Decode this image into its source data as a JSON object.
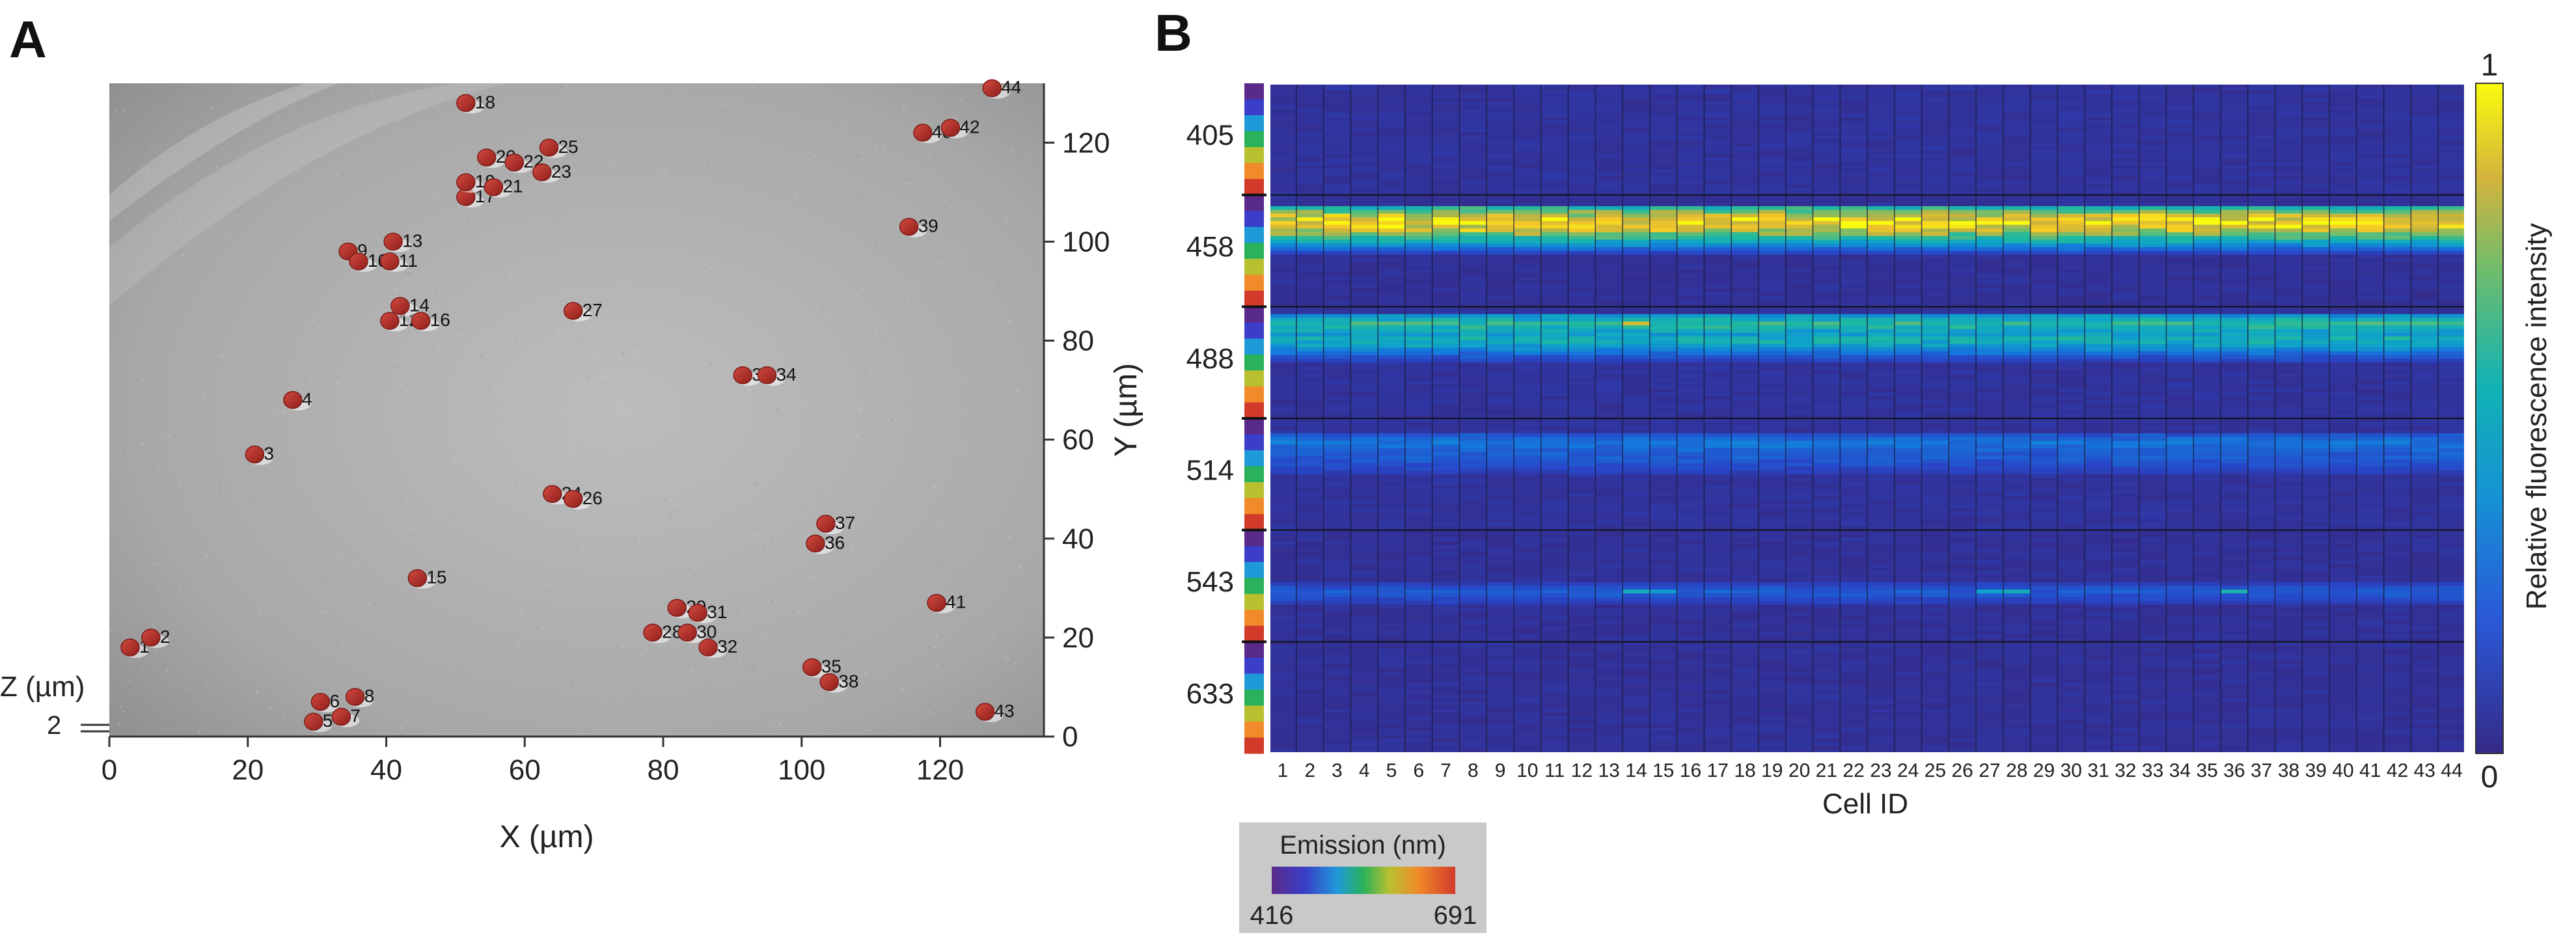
{
  "chart_data": [
    {
      "panel": "A",
      "type": "scatter",
      "title": "",
      "xlabel": "X (µm)",
      "ylabel": "Y (µm)",
      "zlabel": "Z (µm)",
      "z_tick_label": "2",
      "xlim": [
        0,
        135
      ],
      "ylim": [
        0,
        132
      ],
      "xticks": [
        0,
        20,
        40,
        60,
        80,
        100,
        120
      ],
      "yticks": [
        0,
        20,
        40,
        60,
        80,
        100,
        120
      ],
      "background": "grayscale microscopy image",
      "points": [
        {
          "id": "1",
          "x": 3,
          "y": 18
        },
        {
          "id": "2",
          "x": 6,
          "y": 20
        },
        {
          "id": "3",
          "x": 21,
          "y": 57
        },
        {
          "id": "4",
          "x": 26.5,
          "y": 68
        },
        {
          "id": "5",
          "x": 29.5,
          "y": 3
        },
        {
          "id": "6",
          "x": 30.5,
          "y": 7
        },
        {
          "id": "7",
          "x": 33.5,
          "y": 4
        },
        {
          "id": "8",
          "x": 35.5,
          "y": 8
        },
        {
          "id": "9",
          "x": 34.5,
          "y": 98
        },
        {
          "id": "10",
          "x": 36,
          "y": 96
        },
        {
          "id": "11",
          "x": 40.5,
          "y": 96
        },
        {
          "id": "12",
          "x": 40.5,
          "y": 84
        },
        {
          "id": "13",
          "x": 41,
          "y": 100
        },
        {
          "id": "14",
          "x": 42,
          "y": 87
        },
        {
          "id": "15",
          "x": 44.5,
          "y": 32
        },
        {
          "id": "16",
          "x": 45,
          "y": 84
        },
        {
          "id": "17",
          "x": 51.5,
          "y": 109
        },
        {
          "id": "18",
          "x": 51.5,
          "y": 128
        },
        {
          "id": "19",
          "x": 51.5,
          "y": 112
        },
        {
          "id": "20",
          "x": 54.5,
          "y": 117
        },
        {
          "id": "21",
          "x": 55.5,
          "y": 111
        },
        {
          "id": "22",
          "x": 58.5,
          "y": 116
        },
        {
          "id": "23",
          "x": 62.5,
          "y": 114
        },
        {
          "id": "24",
          "x": 64,
          "y": 49
        },
        {
          "id": "25",
          "x": 63.5,
          "y": 119
        },
        {
          "id": "26",
          "x": 67,
          "y": 48
        },
        {
          "id": "27",
          "x": 67,
          "y": 86
        },
        {
          "id": "28",
          "x": 78.5,
          "y": 21
        },
        {
          "id": "29",
          "x": 82,
          "y": 26
        },
        {
          "id": "30",
          "x": 83.5,
          "y": 21
        },
        {
          "id": "31",
          "x": 85,
          "y": 25
        },
        {
          "id": "32",
          "x": 86.5,
          "y": 18
        },
        {
          "id": "33",
          "x": 91.5,
          "y": 73
        },
        {
          "id": "34",
          "x": 95,
          "y": 73
        },
        {
          "id": "35",
          "x": 101.5,
          "y": 14
        },
        {
          "id": "36",
          "x": 102,
          "y": 39
        },
        {
          "id": "37",
          "x": 103.5,
          "y": 43
        },
        {
          "id": "38",
          "x": 104,
          "y": 11
        },
        {
          "id": "39",
          "x": 115.5,
          "y": 103
        },
        {
          "id": "40",
          "x": 117.5,
          "y": 122
        },
        {
          "id": "41",
          "x": 119.5,
          "y": 27
        },
        {
          "id": "42",
          "x": 121.5,
          "y": 123
        },
        {
          "id": "43",
          "x": 126.5,
          "y": 5
        },
        {
          "id": "44",
          "x": 127.5,
          "y": 131
        }
      ]
    },
    {
      "panel": "B",
      "type": "heatmap",
      "title": "",
      "xlabel": "Cell ID",
      "ylabel": "",
      "x_categories": [
        "1",
        "2",
        "3",
        "4",
        "5",
        "6",
        "7",
        "8",
        "9",
        "10",
        "11",
        "12",
        "13",
        "14",
        "15",
        "16",
        "17",
        "18",
        "19",
        "20",
        "21",
        "22",
        "23",
        "24",
        "25",
        "26",
        "27",
        "28",
        "29",
        "30",
        "31",
        "32",
        "33",
        "34",
        "35",
        "36",
        "37",
        "38",
        "39",
        "40",
        "41",
        "42",
        "43",
        "44"
      ],
      "y_ticks_nm": [
        "405",
        "458",
        "488",
        "514",
        "543",
        "633"
      ],
      "rows_per_laser_block": 30,
      "colorbar": {
        "label": "Relative fluorescence intensity",
        "min_label": "0",
        "max_label": "1",
        "range": [
          0,
          1
        ]
      },
      "emission_legend": {
        "title": "Emission (nm)",
        "min_label": "416",
        "max_label": "691"
      },
      "series": [
        {
          "name": "405",
          "profile_rows": [],
          "base_intensity": 0.05
        },
        {
          "name": "458",
          "peak_rows": [
            [
              3,
              0.58
            ],
            [
              4,
              0.72
            ],
            [
              5,
              0.84
            ],
            [
              6,
              0.93
            ],
            [
              7,
              0.97
            ],
            [
              8,
              0.92
            ],
            [
              9,
              0.84
            ],
            [
              10,
              0.74
            ],
            [
              11,
              0.62
            ],
            [
              12,
              0.5
            ],
            [
              13,
              0.38
            ],
            [
              14,
              0.26
            ],
            [
              15,
              0.16
            ]
          ],
          "base_intensity": 0.04
        },
        {
          "name": "488",
          "peak_rows": [
            [
              2,
              0.42
            ],
            [
              3,
              0.52
            ],
            [
              4,
              0.6
            ],
            [
              5,
              0.55
            ],
            [
              6,
              0.48
            ],
            [
              7,
              0.44
            ],
            [
              8,
              0.52
            ],
            [
              9,
              0.5
            ],
            [
              10,
              0.44
            ],
            [
              11,
              0.36
            ],
            [
              12,
              0.28
            ],
            [
              13,
              0.2
            ],
            [
              14,
              0.14
            ]
          ],
          "base_intensity": 0.05
        },
        {
          "name": "514",
          "peak_rows": [
            [
              4,
              0.2
            ],
            [
              5,
              0.26
            ],
            [
              6,
              0.3
            ],
            [
              7,
              0.28
            ],
            [
              8,
              0.25
            ],
            [
              9,
              0.22
            ],
            [
              10,
              0.22
            ],
            [
              11,
              0.2
            ],
            [
              12,
              0.18
            ],
            [
              13,
              0.15
            ],
            [
              14,
              0.12
            ]
          ],
          "base_intensity": 0.05
        },
        {
          "name": "543",
          "peak_rows": [
            [
              14,
              0.12
            ],
            [
              15,
              0.18
            ],
            [
              16,
              0.22
            ],
            [
              17,
              0.2
            ],
            [
              18,
              0.16
            ],
            [
              19,
              0.12
            ]
          ],
          "base_intensity": 0.04
        },
        {
          "name": "633",
          "profile_rows": [],
          "base_intensity": 0.04
        }
      ],
      "highlights": [
        {
          "cell": "14",
          "laser": "488",
          "row": 4,
          "value": 0.85
        },
        {
          "cell": "14",
          "laser": "543",
          "row": 16,
          "value": 0.5
        },
        {
          "cell": "15",
          "laser": "543",
          "row": 16,
          "value": 0.42
        },
        {
          "cell": "27",
          "laser": "543",
          "row": 16,
          "value": 0.45
        },
        {
          "cell": "28",
          "laser": "543",
          "row": 16,
          "value": 0.5
        },
        {
          "cell": "36",
          "laser": "543",
          "row": 16,
          "value": 0.55
        }
      ]
    }
  ],
  "panel_labels": {
    "a": "A",
    "b": "B"
  },
  "colors": {
    "cell_marker": "#b3302a",
    "image_gray": "#a9a9a9",
    "axis": "#333333"
  }
}
